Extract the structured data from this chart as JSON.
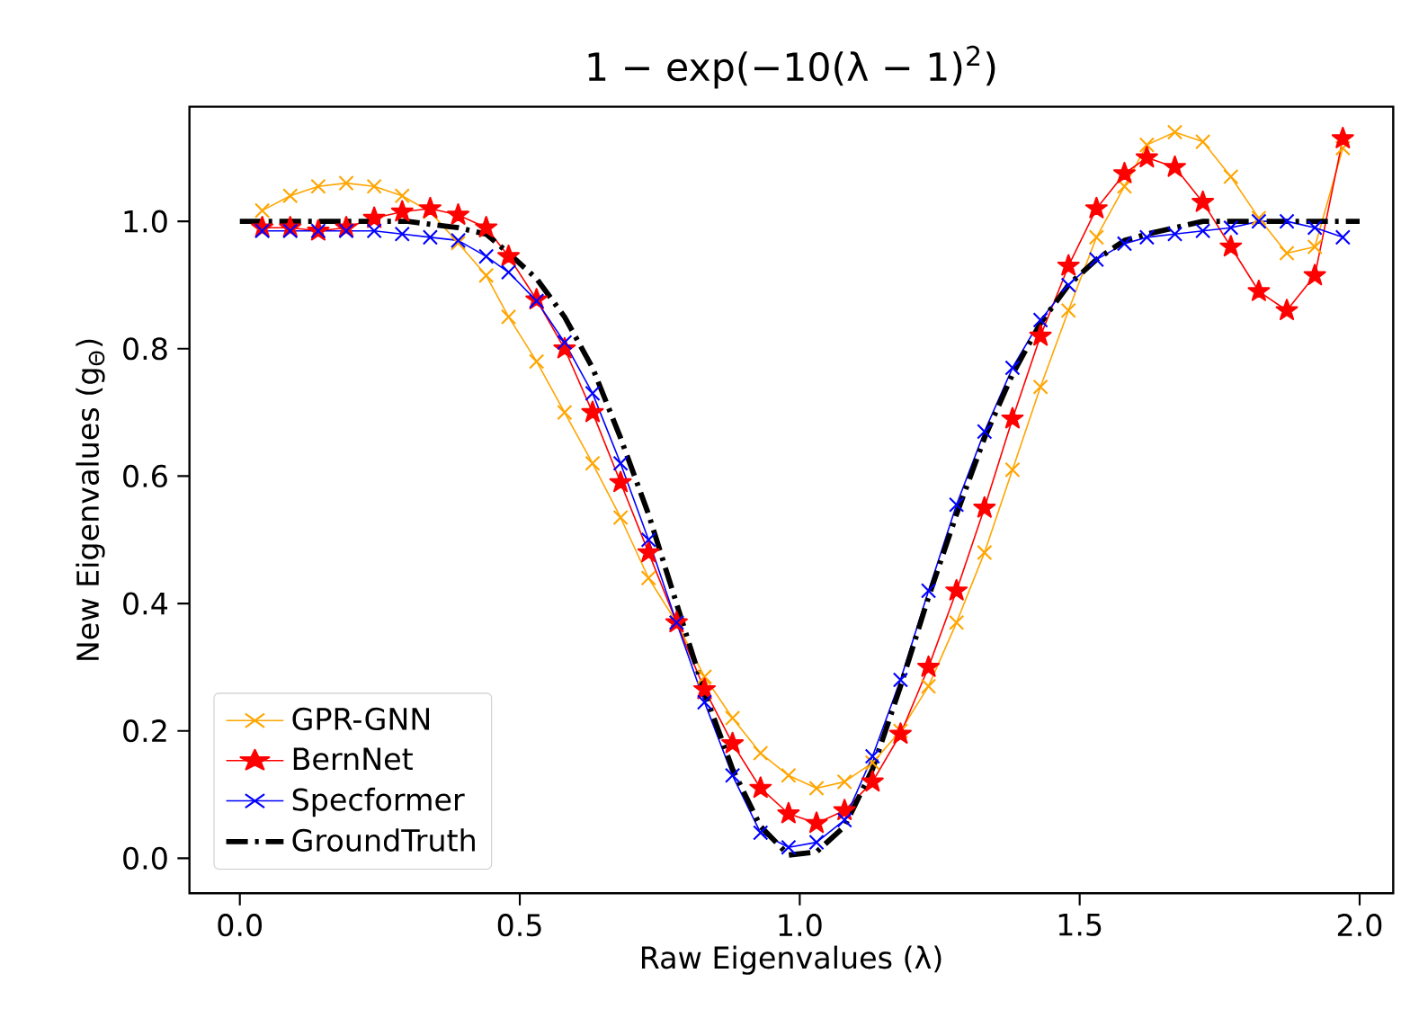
{
  "chart_data": {
    "type": "line",
    "title": "1 − exp(−10(λ − 1)$^{2}$)",
    "xlabel": "Raw Eigenvalues (λ)",
    "ylabel": "New Eigenvalues (g$_{Θ}$)",
    "xlim": [
      -0.09,
      2.06
    ],
    "ylim": [
      -0.055,
      1.18
    ],
    "xticks": [
      {
        "value": 0,
        "label": "0.0"
      },
      {
        "value": 0.5,
        "label": "0.5"
      },
      {
        "value": 1,
        "label": "1.0"
      },
      {
        "value": 1.5,
        "label": "1.5"
      },
      {
        "value": 2,
        "label": "2.0"
      }
    ],
    "yticks": [
      {
        "value": 0,
        "label": "0.0"
      },
      {
        "value": 0.2,
        "label": "0.2"
      },
      {
        "value": 0.4,
        "label": "0.4"
      },
      {
        "value": 0.6,
        "label": "0.6"
      },
      {
        "value": 0.8,
        "label": "0.8"
      },
      {
        "value": 1,
        "label": "1.0"
      }
    ],
    "x": [
      0.04,
      0.09,
      0.14,
      0.19,
      0.24,
      0.29,
      0.34,
      0.39,
      0.44,
      0.48,
      0.53,
      0.58,
      0.63,
      0.68,
      0.73,
      0.78,
      0.83,
      0.88,
      0.93,
      0.98,
      1.03,
      1.08,
      1.13,
      1.18,
      1.23,
      1.28,
      1.33,
      1.38,
      1.43,
      1.48,
      1.53,
      1.58,
      1.62,
      1.67,
      1.72,
      1.77,
      1.82,
      1.87,
      1.92,
      1.97
    ],
    "legend": "bottom left",
    "grid": false,
    "series": [
      {
        "name": "GPR-GNN",
        "color": "#ffa500",
        "marker": "cross",
        "line_style": "solid",
        "values": [
          1.017,
          1.04,
          1.055,
          1.06,
          1.055,
          1.04,
          1.015,
          0.966,
          0.915,
          0.85,
          0.78,
          0.7,
          0.62,
          0.535,
          0.44,
          0.37,
          0.285,
          0.22,
          0.165,
          0.13,
          0.11,
          0.12,
          0.15,
          0.2,
          0.27,
          0.37,
          0.48,
          0.61,
          0.74,
          0.86,
          0.975,
          1.055,
          1.12,
          1.14,
          1.125,
          1.07,
          1.005,
          0.95,
          0.96,
          1.115
        ]
      },
      {
        "name": "BernNet",
        "color": "#ff0000",
        "marker": "star",
        "line_style": "solid",
        "values": [
          0.99,
          0.99,
          0.985,
          0.99,
          1.005,
          1.015,
          1.02,
          1.01,
          0.99,
          0.945,
          0.877,
          0.8,
          0.7,
          0.59,
          0.48,
          0.37,
          0.265,
          0.18,
          0.11,
          0.07,
          0.055,
          0.075,
          0.12,
          0.195,
          0.3,
          0.42,
          0.55,
          0.69,
          0.82,
          0.93,
          1.02,
          1.075,
          1.1,
          1.085,
          1.03,
          0.96,
          0.89,
          0.86,
          0.915,
          1.13
        ]
      },
      {
        "name": "Specformer",
        "color": "#0000ff",
        "marker": "cross",
        "line_style": "solid",
        "values": [
          0.985,
          0.985,
          0.985,
          0.985,
          0.985,
          0.98,
          0.975,
          0.97,
          0.945,
          0.92,
          0.875,
          0.81,
          0.73,
          0.62,
          0.5,
          0.37,
          0.245,
          0.13,
          0.04,
          0.017,
          0.025,
          0.06,
          0.16,
          0.28,
          0.42,
          0.555,
          0.67,
          0.77,
          0.845,
          0.9,
          0.94,
          0.965,
          0.975,
          0.98,
          0.985,
          0.99,
          1.0,
          1.0,
          0.99,
          0.975
        ]
      },
      {
        "name": "GroundTruth",
        "color": "#000000",
        "marker": "none",
        "line_style": "dashdot",
        "x": [
          0.0,
          0.1,
          0.2,
          0.3,
          0.39,
          0.44,
          0.48,
          0.53,
          0.58,
          0.63,
          0.68,
          0.73,
          0.78,
          0.83,
          0.88,
          0.93,
          0.98,
          1.03,
          1.08,
          1.13,
          1.18,
          1.23,
          1.28,
          1.33,
          1.38,
          1.43,
          1.48,
          1.53,
          1.58,
          1.62,
          1.67,
          1.72,
          1.8,
          1.9,
          2.0
        ],
        "values": [
          1.0,
          1.0,
          1.0,
          1.0,
          0.99,
          0.98,
          0.95,
          0.91,
          0.85,
          0.77,
          0.66,
          0.54,
          0.4,
          0.26,
          0.14,
          0.05,
          0.005,
          0.01,
          0.05,
          0.14,
          0.27,
          0.41,
          0.54,
          0.66,
          0.76,
          0.84,
          0.9,
          0.94,
          0.97,
          0.98,
          0.99,
          1.0,
          1.0,
          1.0,
          1.0
        ]
      }
    ]
  }
}
